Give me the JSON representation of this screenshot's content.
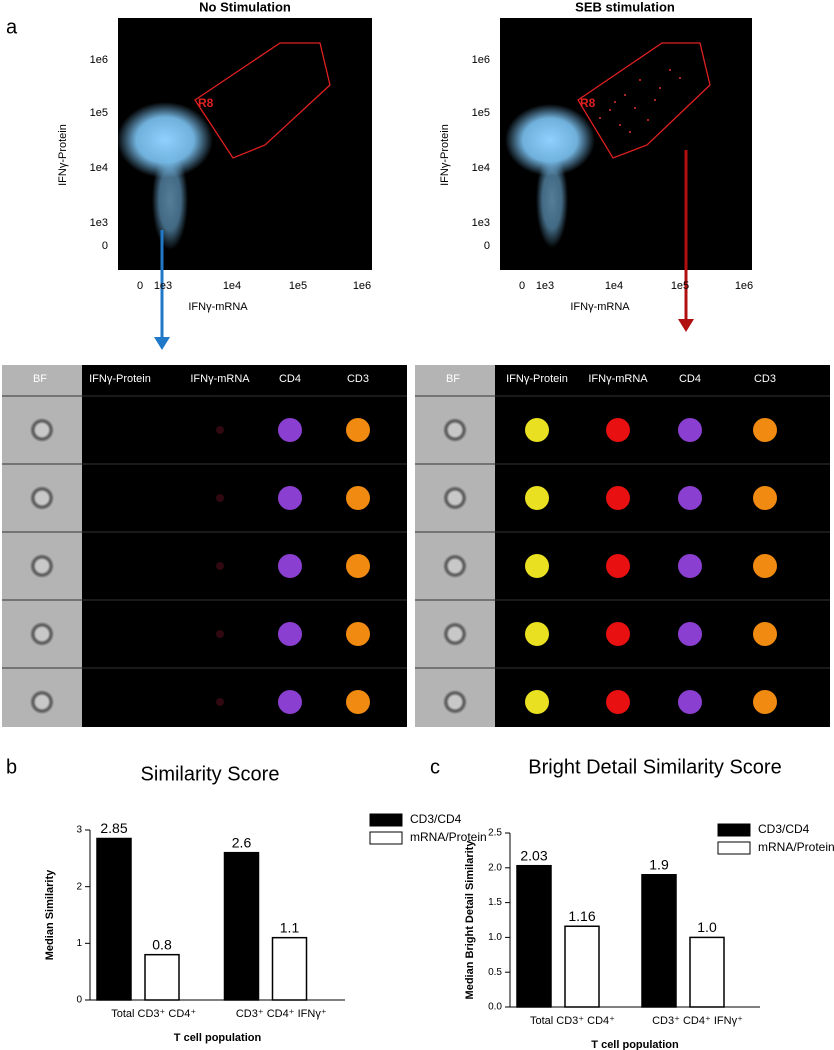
{
  "panel_labels": [
    "a",
    "b",
    "c"
  ],
  "flow_plots": [
    {
      "title": "No Stimulation",
      "x_label": "IFNγ-mRNA",
      "y_label": "IFNγ-Protein",
      "x_ticks": [
        "0",
        "1e3",
        "1e4",
        "1e5",
        "1e6"
      ],
      "y_ticks": [
        "1e6",
        "1e5",
        "1e4",
        "1e3",
        "0"
      ],
      "gate_label": "R8"
    },
    {
      "title": "SEB stimulation",
      "x_label": "IFNγ-mRNA",
      "y_label": "IFNγ-Protein",
      "x_ticks": [
        "0",
        "1e3",
        "1e4",
        "1e5",
        "1e6"
      ],
      "y_ticks": [
        "1e6",
        "1e5",
        "1e4",
        "1e3",
        "0"
      ],
      "gate_label": "R8"
    }
  ],
  "galleries": [
    {
      "columns": [
        "BF",
        "IFNγ-Protein",
        "IFNγ-mRNA",
        "CD4",
        "CD3"
      ]
    },
    {
      "columns": [
        "BF",
        "IFNγ-Protein",
        "IFNγ-mRNA",
        "CD4",
        "CD3"
      ]
    }
  ],
  "chart_data": [
    {
      "type": "bar",
      "title": "Similarity Score",
      "y_label": "Median Similarity",
      "x_label": "T cell population",
      "categories": [
        "Total CD3⁺ CD4⁺",
        "CD3⁺ CD4⁺ IFNγ⁺"
      ],
      "series": [
        {
          "name": "CD3/CD4",
          "color": "#000000",
          "values": [
            2.85,
            2.6
          ]
        },
        {
          "name": "mRNA/Protein",
          "color": "#ffffff",
          "values": [
            0.8,
            1.1
          ]
        }
      ],
      "ylim": [
        0,
        3
      ],
      "yticks": [
        0,
        1,
        2,
        3
      ]
    },
    {
      "type": "bar",
      "title": "Bright Detail Similarity Score",
      "y_label": "Median Bright Detail Similarity",
      "x_label": "T cell population",
      "categories": [
        "Total CD3⁺ CD4⁺",
        "CD3⁺ CD4⁺ IFNγ⁺"
      ],
      "series": [
        {
          "name": "CD3/CD4",
          "color": "#000000",
          "values": [
            2.03,
            1.9
          ]
        },
        {
          "name": "mRNA/Protein",
          "color": "#ffffff",
          "values": [
            1.16,
            1.0
          ],
          "value_labels": [
            "1.16",
            "1.0"
          ]
        }
      ],
      "ylim": [
        0,
        2.5
      ],
      "yticks": [
        {
          "value": 0,
          "label": "0.0"
        },
        {
          "value": 0.5,
          "label": "0.5"
        },
        {
          "value": 1,
          "label": "1.0"
        },
        {
          "value": 1.5,
          "label": "1.5"
        },
        {
          "value": 2,
          "label": "2.0"
        },
        {
          "value": 2.5,
          "label": "2.5"
        }
      ]
    }
  ]
}
